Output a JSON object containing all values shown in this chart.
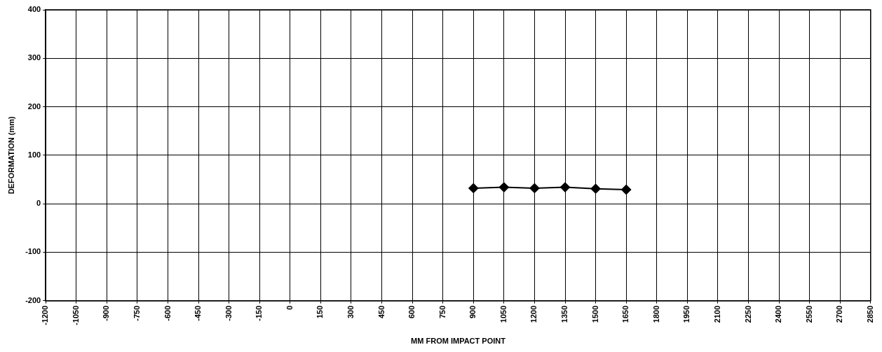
{
  "chart_data": {
    "type": "line",
    "xlabel": "MM FROM IMPACT POINT",
    "ylabel": "DEFORMATION (mm)",
    "x": [
      900,
      1050,
      1200,
      1350,
      1500,
      1650
    ],
    "series": [
      {
        "color": "#000000",
        "values": [
          32,
          34,
          32,
          34,
          31,
          29
        ]
      }
    ],
    "xlim": [
      -1200,
      2850
    ],
    "xticks": [
      -1200,
      -1050,
      -900,
      -750,
      -600,
      -450,
      -300,
      -150,
      0,
      150,
      300,
      450,
      600,
      750,
      900,
      1050,
      1200,
      1350,
      1500,
      1650,
      1800,
      1950,
      2100,
      2250,
      2400,
      2550,
      2700,
      2850
    ],
    "ylim": [
      -200,
      400
    ],
    "yticks": [
      -200,
      -100,
      0,
      100,
      200,
      300,
      400
    ],
    "grid": true,
    "legend": false,
    "marker": "diamond",
    "line_style": "solid"
  }
}
